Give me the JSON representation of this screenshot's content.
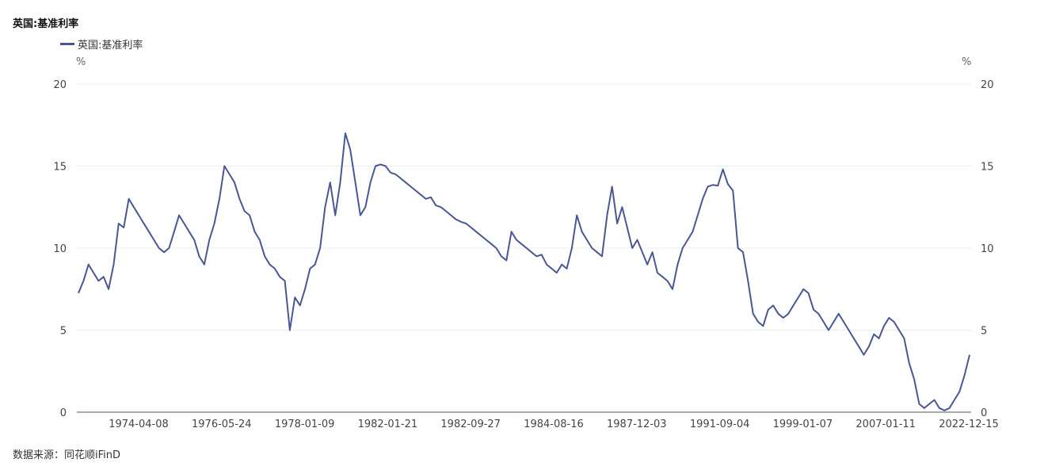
{
  "page": {
    "title": "英国:基准利率",
    "source": "数据来源：同花顺iFinD",
    "line_color": "#4a5794"
  },
  "chart_data": {
    "type": "line",
    "title": "英国:基准利率",
    "ylim": [
      0,
      20
    ],
    "y_ticks": [
      0,
      5,
      10,
      15,
      20
    ],
    "y_unit_left": "%",
    "y_unit_right": "%",
    "grid": true,
    "legend_position": "top-left",
    "x_tick_labels": [
      "1974-04-08",
      "1976-05-24",
      "1978-01-09",
      "1982-01-21",
      "1982-09-27",
      "1984-08-16",
      "1987-12-03",
      "1991-09-04",
      "1999-01-07",
      "2007-01-11",
      "2022-12-15"
    ],
    "series": [
      {
        "name": "英国:基准利率",
        "values": [
          7.25,
          8.0,
          9.0,
          8.5,
          8.0,
          8.25,
          7.5,
          9.0,
          11.5,
          11.25,
          13.0,
          12.5,
          12.0,
          11.5,
          11.0,
          10.5,
          10.0,
          9.75,
          10.0,
          11.0,
          12.0,
          11.5,
          11.0,
          10.5,
          9.5,
          9.0,
          10.5,
          11.5,
          13.0,
          15.0,
          14.5,
          14.0,
          13.0,
          12.25,
          12.0,
          11.0,
          10.5,
          9.5,
          9.0,
          8.75,
          8.25,
          8.0,
          5.0,
          7.0,
          6.5,
          7.5,
          8.75,
          9.0,
          10.0,
          12.5,
          14.0,
          12.0,
          14.0,
          17.0,
          16.0,
          14.0,
          12.0,
          12.5,
          14.0,
          15.0,
          15.1,
          15.0,
          14.6,
          14.5,
          14.25,
          14.0,
          13.75,
          13.5,
          13.25,
          13.0,
          13.1,
          12.6,
          12.5,
          12.25,
          12.0,
          11.75,
          11.6,
          11.5,
          11.25,
          11.0,
          10.75,
          10.5,
          10.25,
          10.0,
          9.5,
          9.25,
          11.0,
          10.5,
          10.25,
          10.0,
          9.75,
          9.5,
          9.6,
          9.0,
          8.75,
          8.5,
          9.0,
          8.75,
          10.0,
          12.0,
          11.0,
          10.5,
          10.0,
          9.75,
          9.5,
          12.0,
          13.75,
          11.5,
          12.5,
          11.25,
          10.0,
          10.5,
          9.75,
          9.0,
          9.75,
          8.5,
          8.25,
          8.0,
          7.5,
          9.0,
          10.0,
          10.5,
          11.0,
          12.0,
          13.0,
          13.75,
          13.85,
          13.8,
          14.8,
          13.9,
          13.5,
          10.0,
          9.75,
          8.0,
          6.0,
          5.5,
          5.25,
          6.25,
          6.5,
          6.0,
          5.75,
          6.0,
          6.5,
          7.0,
          7.5,
          7.25,
          6.25,
          6.0,
          5.5,
          5.0,
          5.5,
          6.0,
          5.5,
          5.0,
          4.5,
          4.0,
          3.5,
          4.0,
          4.75,
          4.5,
          5.25,
          5.75,
          5.5,
          5.0,
          4.5,
          3.0,
          2.0,
          0.5,
          0.25,
          0.5,
          0.75,
          0.25,
          0.1,
          0.25,
          0.75,
          1.25,
          2.25,
          3.5
        ]
      }
    ]
  }
}
